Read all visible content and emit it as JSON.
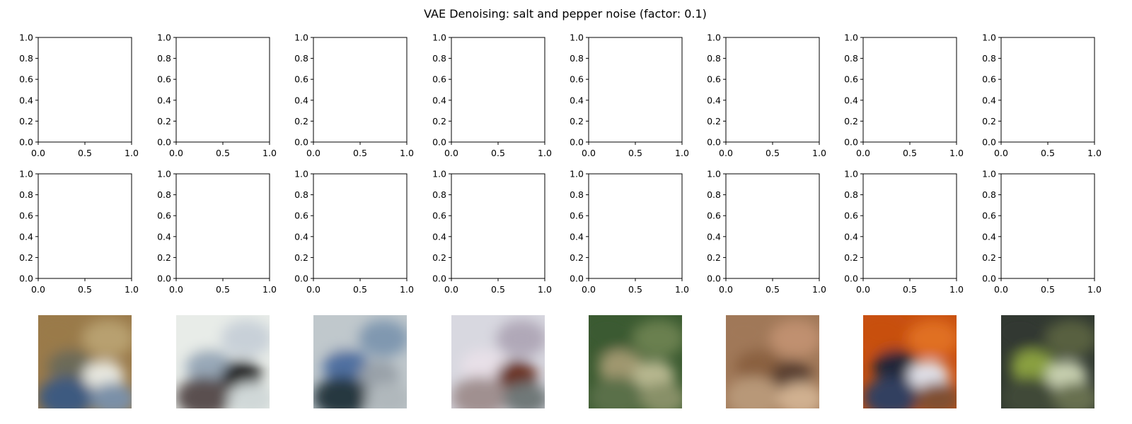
{
  "chart_data": {
    "type": "image-grid",
    "title": "VAE Denoising: salt and pepper noise (factor: 0.1)",
    "rows": 3,
    "cols": 8,
    "empty_axes_rows": [
      0,
      1
    ],
    "image_row": 2,
    "xlim": [
      0.0,
      1.0
    ],
    "ylim": [
      0.0,
      1.0
    ],
    "xticks": [
      "0.0",
      "0.5",
      "1.0"
    ],
    "yticks": [
      "0.0",
      "0.2",
      "0.4",
      "0.6",
      "0.8",
      "1.0"
    ],
    "grid": false,
    "legend": "none",
    "images": [
      {
        "name": "reconstruction-1",
        "colors": [
          "#9a7a4a",
          "#b8a070",
          "#6c6a58",
          "#e8e8e0",
          "#3d5a80",
          "#7a90a8"
        ]
      },
      {
        "name": "reconstruction-2",
        "colors": [
          "#e8ece8",
          "#c8d0d8",
          "#98a8b8",
          "#202020",
          "#5a5050",
          "#d0d8d8"
        ]
      },
      {
        "name": "reconstruction-3",
        "colors": [
          "#c0c8cc",
          "#8098b0",
          "#5070a0",
          "#98a0a8",
          "#283840",
          "#b0b8bc"
        ]
      },
      {
        "name": "reconstruction-4",
        "colors": [
          "#d8d8e0",
          "#b0a8b8",
          "#e8e0e8",
          "#6a3020",
          "#a09090",
          "#707878"
        ]
      },
      {
        "name": "reconstruction-5",
        "colors": [
          "#3a5a30",
          "#6a8050",
          "#a09870",
          "#b8b890",
          "#5a7048",
          "#889068"
        ]
      },
      {
        "name": "reconstruction-6",
        "colors": [
          "#a07858",
          "#c09070",
          "#8a6040",
          "#5a4030",
          "#b89878",
          "#d0b090"
        ]
      },
      {
        "name": "reconstruction-7",
        "colors": [
          "#c85010",
          "#e07020",
          "#202838",
          "#e0e0e8",
          "#304060",
          "#805030"
        ]
      },
      {
        "name": "reconstruction-8",
        "colors": [
          "#303830",
          "#586040",
          "#8aa040",
          "#c8d0b0",
          "#404838",
          "#687050"
        ]
      }
    ]
  }
}
